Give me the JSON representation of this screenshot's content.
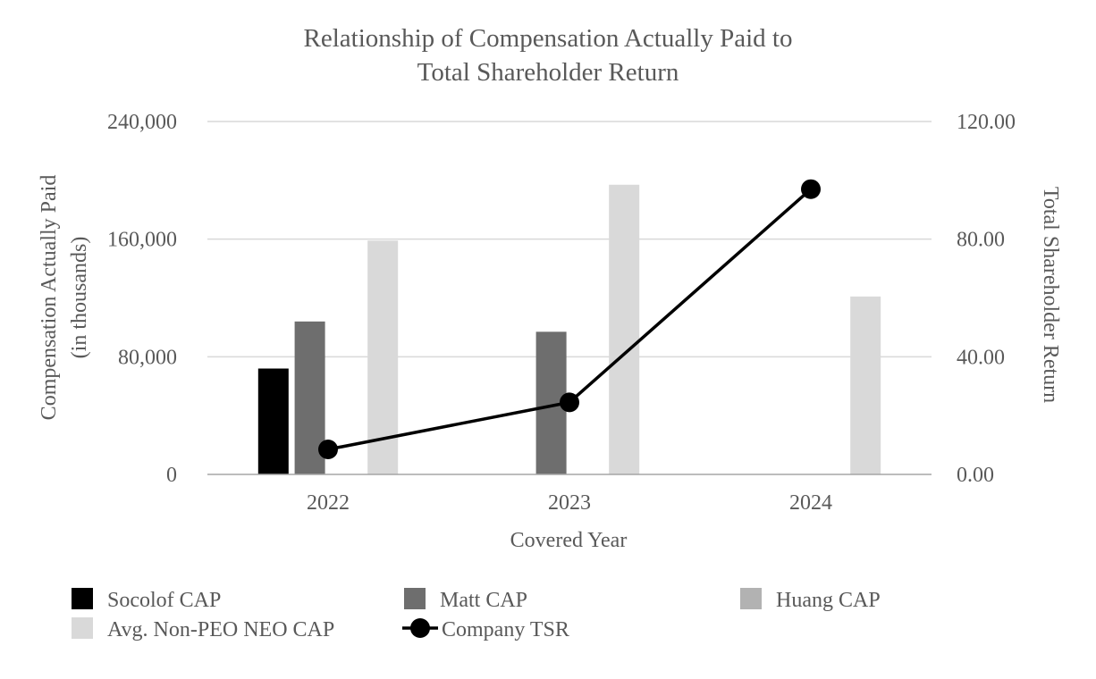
{
  "chart_data": {
    "type": "bar",
    "title": [
      "Relationship of Compensation Actually Paid to",
      "Total Shareholder Return"
    ],
    "xlabel": "Covered Year",
    "ylabel": [
      "Compensation Actually Paid",
      "(in thousands)"
    ],
    "y2label": "Total Shareholder Return",
    "categories": [
      "2022",
      "2023",
      "2024"
    ],
    "ylim": [
      0,
      240000
    ],
    "y2lim": [
      0,
      120
    ],
    "yticks": [
      "0",
      "80,000",
      "160,000",
      "240,000"
    ],
    "y2ticks": [
      "0.00",
      "40.00",
      "80.00",
      "120.00"
    ],
    "grid": true,
    "legend_position": "bottom",
    "series": [
      {
        "name": "Socolof CAP",
        "kind": "bar",
        "axis": "left",
        "color": "#000000",
        "values": [
          72000,
          null,
          null
        ]
      },
      {
        "name": "Matt CAP",
        "kind": "bar",
        "axis": "left",
        "color": "#6e6e6e",
        "values": [
          104000,
          97000,
          null
        ]
      },
      {
        "name": "Huang CAP",
        "kind": "bar",
        "axis": "left",
        "color": "#b2b2b2",
        "values": [
          null,
          null,
          null
        ]
      },
      {
        "name": "Avg. Non-PEO NEO CAP",
        "kind": "bar",
        "axis": "left",
        "color": "#d9d9d9",
        "values": [
          159000,
          197000,
          121000
        ]
      },
      {
        "name": "Company TSR",
        "kind": "line",
        "axis": "right",
        "color": "#000000",
        "values": [
          8.5,
          24.5,
          97
        ]
      }
    ]
  }
}
